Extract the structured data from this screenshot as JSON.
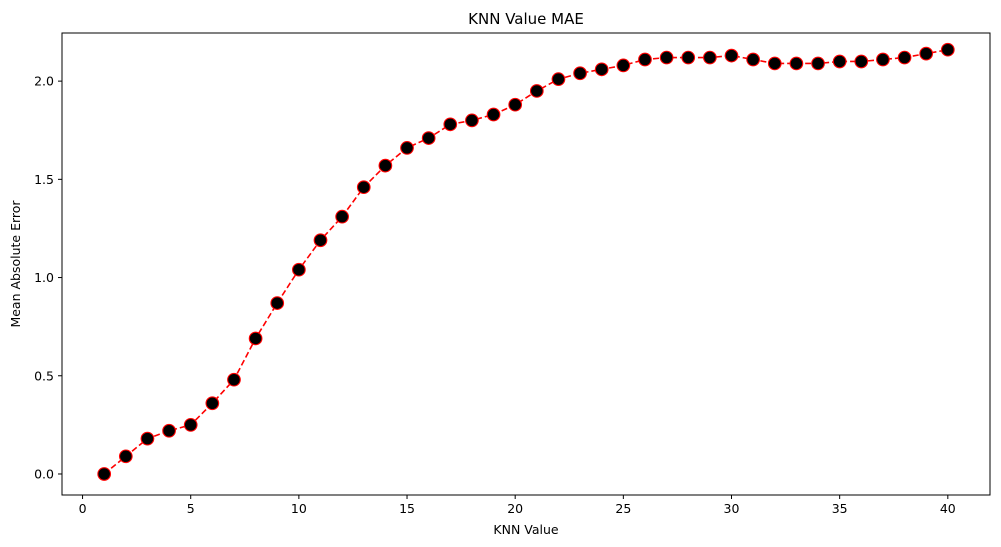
{
  "chart_data": {
    "type": "line",
    "title": "KNN Value MAE",
    "xlabel": "KNN Value",
    "ylabel": "Mean Absolute Error",
    "xlim": [
      -0.95,
      41.95
    ],
    "ylim": [
      -0.107,
      2.245
    ],
    "xticks": [
      0,
      5,
      10,
      15,
      20,
      25,
      30,
      35,
      40
    ],
    "yticks": [
      0.0,
      0.5,
      1.0,
      1.5,
      2.0
    ],
    "ytick_labels": [
      "0.0",
      "0.5",
      "1.0",
      "1.5",
      "2.0"
    ],
    "grid": false,
    "line_color": "#ff0000",
    "line_style": "dashed",
    "marker_face": "#000000",
    "marker_edge": "#ff0000",
    "x": [
      1,
      2,
      3,
      4,
      5,
      6,
      7,
      8,
      9,
      10,
      11,
      12,
      13,
      14,
      15,
      16,
      17,
      18,
      19,
      20,
      21,
      22,
      23,
      24,
      25,
      26,
      27,
      28,
      29,
      30,
      31,
      32,
      33,
      34,
      35,
      36,
      37,
      38,
      39,
      40
    ],
    "y": [
      0.0,
      0.09,
      0.18,
      0.22,
      0.25,
      0.36,
      0.48,
      0.69,
      0.87,
      1.04,
      1.19,
      1.31,
      1.46,
      1.57,
      1.66,
      1.71,
      1.78,
      1.8,
      1.83,
      1.88,
      1.95,
      2.01,
      2.04,
      2.06,
      2.08,
      2.11,
      2.12,
      2.12,
      2.12,
      2.13,
      2.11,
      2.09,
      2.09,
      2.09,
      2.1,
      2.1,
      2.11,
      2.12,
      2.14,
      2.16
    ]
  }
}
